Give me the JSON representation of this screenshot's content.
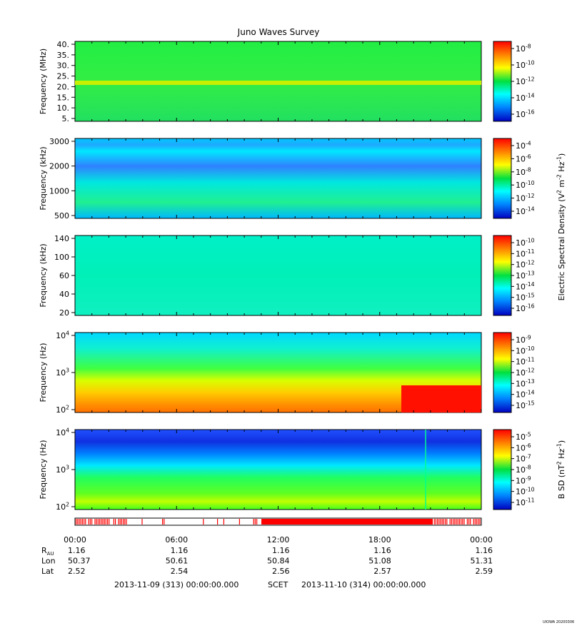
{
  "title": "Juno Waves Survey",
  "credit": "UIOWA 20200306",
  "chart_data": [
    {
      "type": "heatmap",
      "name": "electric-high",
      "ylabel": "Frequency (MHz)",
      "yticks": [
        "40.",
        "35.",
        "30.",
        "25.",
        "20.",
        "15.",
        "10.",
        "5."
      ],
      "colorbar_ticks": [
        "10^-8",
        "10^-10",
        "10^-12",
        "10^-14",
        "10^-16"
      ]
    },
    {
      "type": "heatmap",
      "name": "electric-mid",
      "ylabel": "Frequency (kHz)",
      "yticks": [
        "3000",
        "2000",
        "1000",
        "500"
      ],
      "colorbar_ticks": [
        "10^-4",
        "10^-6",
        "10^-8",
        "10^-10",
        "10^-12",
        "10^-14"
      ]
    },
    {
      "type": "heatmap",
      "name": "electric-low",
      "ylabel": "Frequency (kHz)",
      "yticks": [
        "140",
        "100",
        "60",
        "40",
        "20"
      ],
      "colorbar_ticks": [
        "10^-10",
        "10^-11",
        "10^-12",
        "10^-13",
        "10^-14",
        "10^-15",
        "10^-16"
      ]
    },
    {
      "type": "heatmap",
      "name": "electric-hz",
      "ylabel": "Frequency (Hz)",
      "yticks": [
        "10^4",
        "10^3",
        "10^2"
      ],
      "colorbar_ticks": [
        "10^-9",
        "10^-10",
        "10^-11",
        "10^-12",
        "10^-13",
        "10^-14",
        "10^-15"
      ]
    },
    {
      "type": "heatmap",
      "name": "magnetic-hz",
      "ylabel": "Frequency (Hz)",
      "yticks": [
        "10^4",
        "10^3",
        "10^2"
      ],
      "colorbar_ticks": [
        "10^-5",
        "10^-6",
        "10^-7",
        "10^-8",
        "10^-9",
        "10^-10",
        "10^-11"
      ]
    }
  ],
  "colorbar_labels": {
    "electric": "Electric Spectral Density (V^2 m^-2 Hz^-1)",
    "magnetic": "B SD (nT^2 Hz^-1)"
  },
  "x_axis": {
    "times": [
      "00:00",
      "06:00",
      "12:00",
      "18:00",
      "00:00"
    ],
    "rows": [
      {
        "label": "R",
        "sub": "AU",
        "values": [
          "1.16",
          "1.16",
          "1.16",
          "1.16",
          "1.16"
        ]
      },
      {
        "label": "Lon",
        "sub": "",
        "values": [
          "50.37",
          "50.61",
          "50.84",
          "51.08",
          "51.31"
        ]
      },
      {
        "label": "Lat",
        "sub": "",
        "values": [
          "2.52",
          "2.54",
          "2.56",
          "2.57",
          "2.59"
        ]
      }
    ],
    "footer": {
      "start": "2013-11-09 (313) 00:00:00.000",
      "mid": "SCET",
      "end": "2013-11-10 (314) 00:00:00.000"
    }
  }
}
